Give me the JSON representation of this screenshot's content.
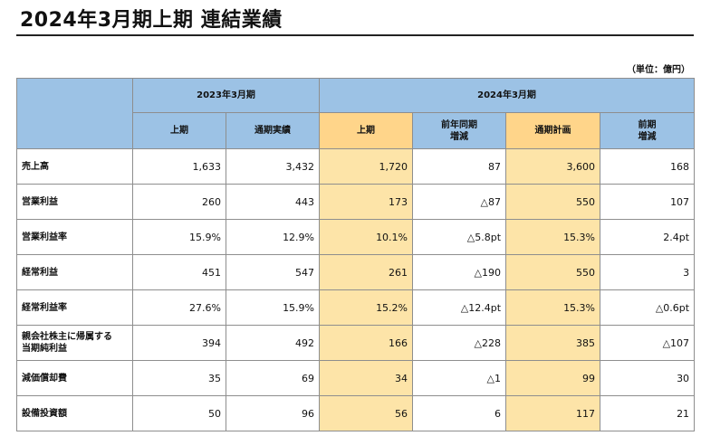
{
  "title": "2024年3月期上期 連結業績",
  "unit_note": "（単位：億円）",
  "groups": [
    "2023年3月期",
    "2024年3月期"
  ],
  "columns": [
    "上期",
    "通期実績",
    "上期",
    "前年同期\n増減",
    "通期計画",
    "前期\n増減"
  ],
  "rows": [
    {
      "label": "売上高",
      "cells": [
        "1,633",
        "3,432",
        "1,720",
        "87",
        "3,600",
        "168"
      ]
    },
    {
      "label": "営業利益",
      "cells": [
        "260",
        "443",
        "173",
        "△87",
        "550",
        "107"
      ]
    },
    {
      "label": "営業利益率",
      "cells": [
        "15.9%",
        "12.9%",
        "10.1%",
        "△5.8pt",
        "15.3%",
        "2.4pt"
      ]
    },
    {
      "label": "経常利益",
      "cells": [
        "451",
        "547",
        "261",
        "△190",
        "550",
        "3"
      ]
    },
    {
      "label": "経常利益率",
      "cells": [
        "27.6%",
        "15.9%",
        "15.2%",
        "△12.4pt",
        "15.3%",
        "△0.6pt"
      ]
    },
    {
      "label": "親会社株主に帰属する\n当期純利益",
      "cells": [
        "394",
        "492",
        "166",
        "△228",
        "385",
        "△107"
      ]
    },
    {
      "label": "減価償却費",
      "cells": [
        "35",
        "69",
        "34",
        "△1",
        "99",
        "30"
      ]
    },
    {
      "label": "設備投資額",
      "cells": [
        "50",
        "96",
        "56",
        "6",
        "117",
        "21"
      ]
    }
  ],
  "colors": {
    "header_blue": "#9cc2e5",
    "highlight_header": "#ffd58a",
    "highlight_cell": "#fde4a8"
  }
}
